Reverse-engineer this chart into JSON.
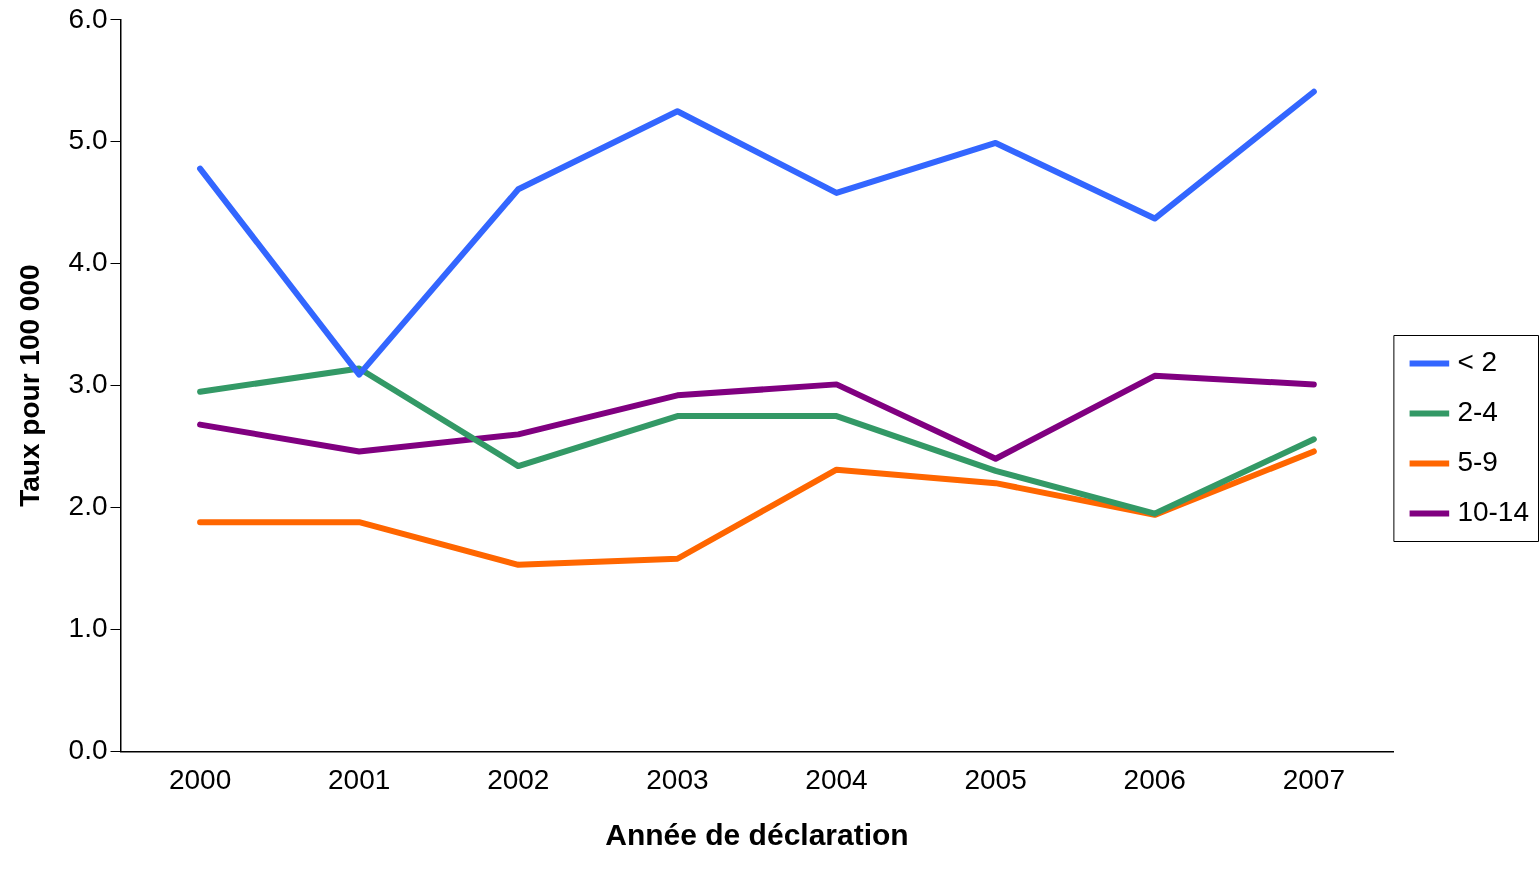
{
  "chart_data": {
    "type": "line",
    "xlabel": "Année de déclaration",
    "ylabel": "Taux pour 100 000",
    "categories": [
      "2000",
      "2001",
      "2002",
      "2003",
      "2004",
      "2005",
      "2006",
      "2007"
    ],
    "series": [
      {
        "name": "< 2",
        "color": "#3366ff",
        "values": [
          4.78,
          3.09,
          4.61,
          5.25,
          4.58,
          4.99,
          4.37,
          5.41
        ]
      },
      {
        "name": "2-4",
        "color": "#339966",
        "values": [
          2.95,
          3.14,
          2.34,
          2.75,
          2.75,
          2.3,
          1.95,
          2.56
        ]
      },
      {
        "name": "5-9",
        "color": "#ff6600",
        "values": [
          1.88,
          1.88,
          1.53,
          1.58,
          2.31,
          2.2,
          1.94,
          2.46
        ]
      },
      {
        "name": "10-14",
        "color": "#800080",
        "values": [
          2.68,
          2.46,
          2.6,
          2.92,
          3.01,
          2.4,
          3.08,
          3.01
        ]
      }
    ],
    "ylim": [
      0,
      6
    ],
    "yticks": [
      {
        "value": 0,
        "label": "0.0"
      },
      {
        "value": 1,
        "label": "1.0"
      },
      {
        "value": 2,
        "label": "2.0"
      },
      {
        "value": 3,
        "label": "3.0"
      },
      {
        "value": 4,
        "label": "4.0"
      },
      {
        "value": 5,
        "label": "5.0"
      },
      {
        "value": 6,
        "label": "6.0"
      }
    ],
    "grid": false,
    "legend": "right",
    "marker": "none",
    "line_style": "solid"
  }
}
